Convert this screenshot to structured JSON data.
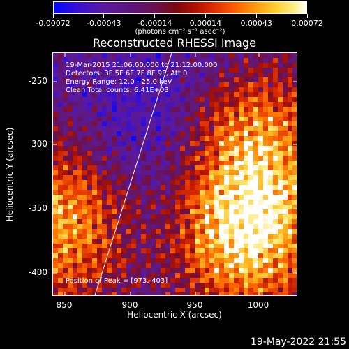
{
  "colorbar": {
    "tick_labels": [
      "-0.00072",
      "-0.00043",
      "-0.00014",
      "0.00014",
      "0.00043",
      "0.00072"
    ],
    "units_label": "(photons cm⁻² s⁻¹ asec⁻²)",
    "range": [
      -0.00072,
      0.00072
    ]
  },
  "plot": {
    "title": "Reconstructed RHESSI Image",
    "info_lines": [
      "19-Mar-2015 21:06:00.000 to 21:12:00.000",
      "Detectors: 3F 5F 6F 7F 8F 9F, Att 0",
      "Energy Range: 12.0 - 25.0 keV",
      "Clean    Total counts: 6.41E+03"
    ],
    "peak_text": "Position of Peak = [973,-403]",
    "xlabel": "Heliocentric X (arcsec)",
    "ylabel": "Heliocentric Y (arcsec)",
    "x_ticks": [
      "850",
      "900",
      "950",
      "1000"
    ],
    "y_ticks": [
      "-250",
      "-300",
      "-350",
      "-400"
    ],
    "xlim": [
      840,
      1030
    ],
    "ylim": [
      -420,
      -230
    ]
  },
  "timestamp": "19-May-2022 21:55"
}
